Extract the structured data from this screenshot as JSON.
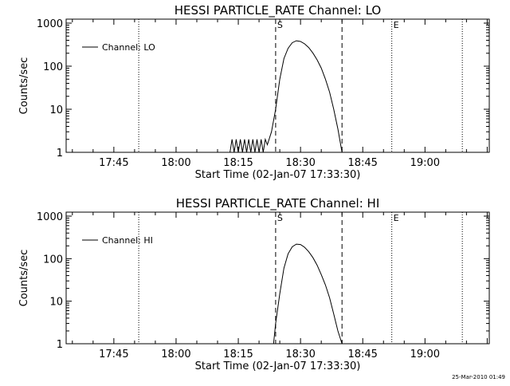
{
  "footer": {
    "timestamp": "25-Mar-2010 01:49"
  },
  "chart_data": [
    {
      "type": "line",
      "title": "HESSI PARTICLE_RATE Channel: LO",
      "xlabel": "Start Time (02-Jan-07 17:33:30)",
      "ylabel": "Counts/sec",
      "y_scale": "log",
      "ylim": [
        1,
        1000
      ],
      "xlim": [
        "17:33:30",
        "19:15:30"
      ],
      "x_ticks": [
        "17:45",
        "18:00",
        "18:15",
        "18:30",
        "18:45",
        "19:00"
      ],
      "y_ticks": [
        "1",
        "10",
        "100",
        "1000"
      ],
      "legend": {
        "position": "top-left",
        "entries": [
          "Channel: LO"
        ]
      },
      "markers": [
        {
          "label": "",
          "time": "17:51",
          "style": "dotted"
        },
        {
          "label": "S",
          "time": "18:24",
          "style": "dashed"
        },
        {
          "label": "",
          "time": "18:40",
          "style": "dashed"
        },
        {
          "label": "E",
          "time": "18:52",
          "style": "dotted"
        },
        {
          "label": "",
          "time": "19:09",
          "style": "dotted"
        }
      ],
      "series": [
        {
          "name": "Channel: LO",
          "points": [
            [
              "18:13:00",
              1
            ],
            [
              "18:13:30",
              2
            ],
            [
              "18:14:00",
              1
            ],
            [
              "18:14:30",
              2
            ],
            [
              "18:15:00",
              1
            ],
            [
              "18:15:30",
              2
            ],
            [
              "18:16:00",
              1
            ],
            [
              "18:16:30",
              2
            ],
            [
              "18:17:00",
              1
            ],
            [
              "18:17:30",
              2
            ],
            [
              "18:18:00",
              1
            ],
            [
              "18:18:30",
              2
            ],
            [
              "18:19:00",
              1
            ],
            [
              "18:19:30",
              2
            ],
            [
              "18:20:00",
              1
            ],
            [
              "18:20:30",
              2
            ],
            [
              "18:21:00",
              1
            ],
            [
              "18:21:30",
              2
            ],
            [
              "18:22:00",
              1.5
            ],
            [
              "18:23:00",
              3
            ],
            [
              "18:24:00",
              10
            ],
            [
              "18:25:00",
              50
            ],
            [
              "18:26:00",
              150
            ],
            [
              "18:27:00",
              260
            ],
            [
              "18:28:00",
              350
            ],
            [
              "18:29:00",
              390
            ],
            [
              "18:30:00",
              375
            ],
            [
              "18:31:00",
              330
            ],
            [
              "18:32:00",
              270
            ],
            [
              "18:33:00",
              200
            ],
            [
              "18:34:00",
              140
            ],
            [
              "18:35:00",
              90
            ],
            [
              "18:36:00",
              50
            ],
            [
              "18:37:00",
              25
            ],
            [
              "18:38:00",
              10
            ],
            [
              "18:39:00",
              3.5
            ],
            [
              "18:40:00",
              1
            ]
          ]
        }
      ]
    },
    {
      "type": "line",
      "title": "HESSI PARTICLE_RATE Channel: HI",
      "xlabel": "Start Time (02-Jan-07 17:33:30)",
      "ylabel": "Counts/sec",
      "y_scale": "log",
      "ylim": [
        1,
        1000
      ],
      "xlim": [
        "17:33:30",
        "19:15:30"
      ],
      "x_ticks": [
        "17:45",
        "18:00",
        "18:15",
        "18:30",
        "18:45",
        "19:00"
      ],
      "y_ticks": [
        "1",
        "10",
        "100",
        "1000"
      ],
      "legend": {
        "position": "top-left",
        "entries": [
          "Channel: HI"
        ]
      },
      "markers": [
        {
          "label": "",
          "time": "17:51",
          "style": "dotted"
        },
        {
          "label": "S",
          "time": "18:24",
          "style": "dashed"
        },
        {
          "label": "",
          "time": "18:40",
          "style": "dashed"
        },
        {
          "label": "E",
          "time": "18:52",
          "style": "dotted"
        },
        {
          "label": "",
          "time": "19:09",
          "style": "dotted"
        }
      ],
      "series": [
        {
          "name": "Channel: HI",
          "points": [
            [
              "18:23:30",
              1
            ],
            [
              "18:24:00",
              3
            ],
            [
              "18:25:00",
              15
            ],
            [
              "18:26:00",
              60
            ],
            [
              "18:27:00",
              130
            ],
            [
              "18:28:00",
              190
            ],
            [
              "18:29:00",
              220
            ],
            [
              "18:30:00",
              215
            ],
            [
              "18:31:00",
              185
            ],
            [
              "18:32:00",
              145
            ],
            [
              "18:33:00",
              105
            ],
            [
              "18:34:00",
              70
            ],
            [
              "18:35:00",
              42
            ],
            [
              "18:36:00",
              24
            ],
            [
              "18:37:00",
              12
            ],
            [
              "18:38:00",
              5
            ],
            [
              "18:39:00",
              2
            ],
            [
              "18:40:00",
              1
            ]
          ]
        }
      ]
    }
  ]
}
